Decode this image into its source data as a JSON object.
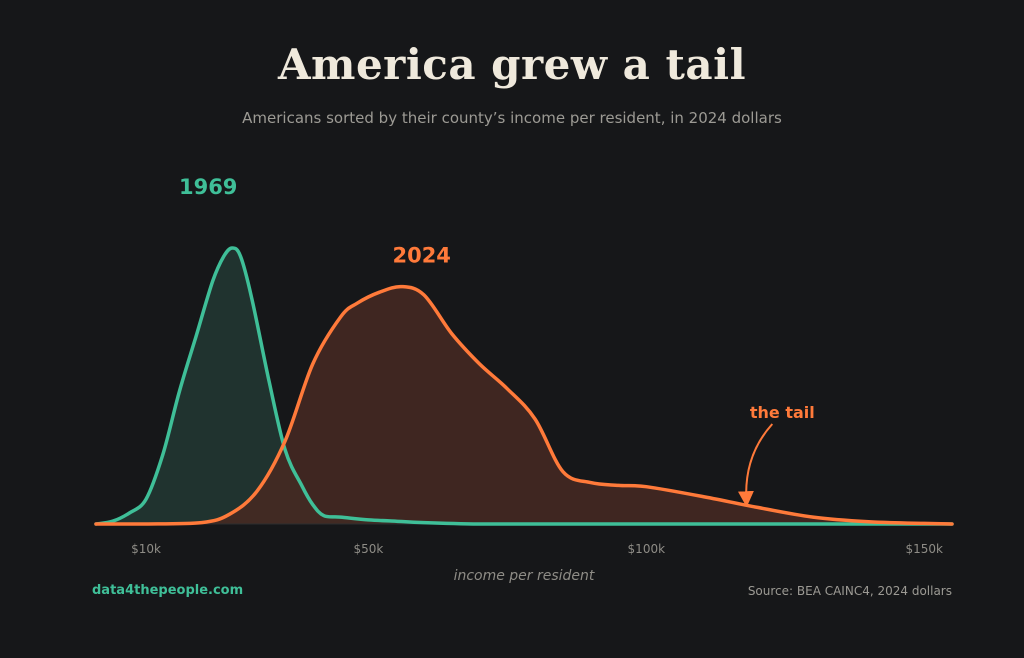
{
  "page": {
    "title": "America grew a tail",
    "subtitle": "Americans sorted by their county’s income per resident, in 2024 dollars",
    "brand": "data4thepeople.com",
    "source": "Source: BEA CAINC4, 2024 dollars"
  },
  "chart_data": {
    "type": "area",
    "xlabel": "income per resident",
    "x_ticks": [
      {
        "value": 10000,
        "label": "$10k"
      },
      {
        "value": 50000,
        "label": "$50k"
      },
      {
        "value": 100000,
        "label": "$100k"
      },
      {
        "value": 150000,
        "label": "$150k"
      }
    ],
    "xlim": [
      1000,
      155000
    ],
    "ylim": [
      0,
      1
    ],
    "grid": false,
    "legend": "direct labels",
    "series": [
      {
        "name": "1969",
        "color": "#3fbf98",
        "fill": "#20332f",
        "x": [
          1000,
          4000,
          7000,
          10000,
          13000,
          16000,
          19000,
          22000,
          24000,
          25500,
          27000,
          29000,
          32000,
          35000,
          38000,
          40000,
          42000,
          45000,
          50000,
          55000,
          60000,
          70000,
          80000,
          100000,
          155000
        ],
        "y": [
          0.0,
          0.01,
          0.04,
          0.09,
          0.25,
          0.48,
          0.68,
          0.88,
          0.97,
          1.0,
          0.97,
          0.82,
          0.53,
          0.27,
          0.14,
          0.07,
          0.03,
          0.025,
          0.015,
          0.01,
          0.005,
          0.0,
          0.0,
          0.0,
          0.0
        ]
      },
      {
        "name": "2024",
        "color": "#ff7a3a",
        "fill": "#452922",
        "x": [
          1000,
          10000,
          20000,
          25000,
          30000,
          35000,
          40000,
          45000,
          48000,
          52000,
          56000,
          60000,
          65000,
          70000,
          75000,
          80000,
          85000,
          90000,
          95000,
          100000,
          110000,
          120000,
          130000,
          140000,
          150000,
          155000
        ],
        "y": [
          0.0,
          0.0,
          0.005,
          0.035,
          0.12,
          0.3,
          0.58,
          0.75,
          0.8,
          0.84,
          0.86,
          0.83,
          0.69,
          0.58,
          0.49,
          0.38,
          0.19,
          0.15,
          0.14,
          0.135,
          0.1,
          0.06,
          0.025,
          0.008,
          0.002,
          0.0
        ]
      }
    ],
    "annotations": [
      {
        "text": "the tail",
        "series": "2024",
        "x": 118000
      }
    ]
  }
}
